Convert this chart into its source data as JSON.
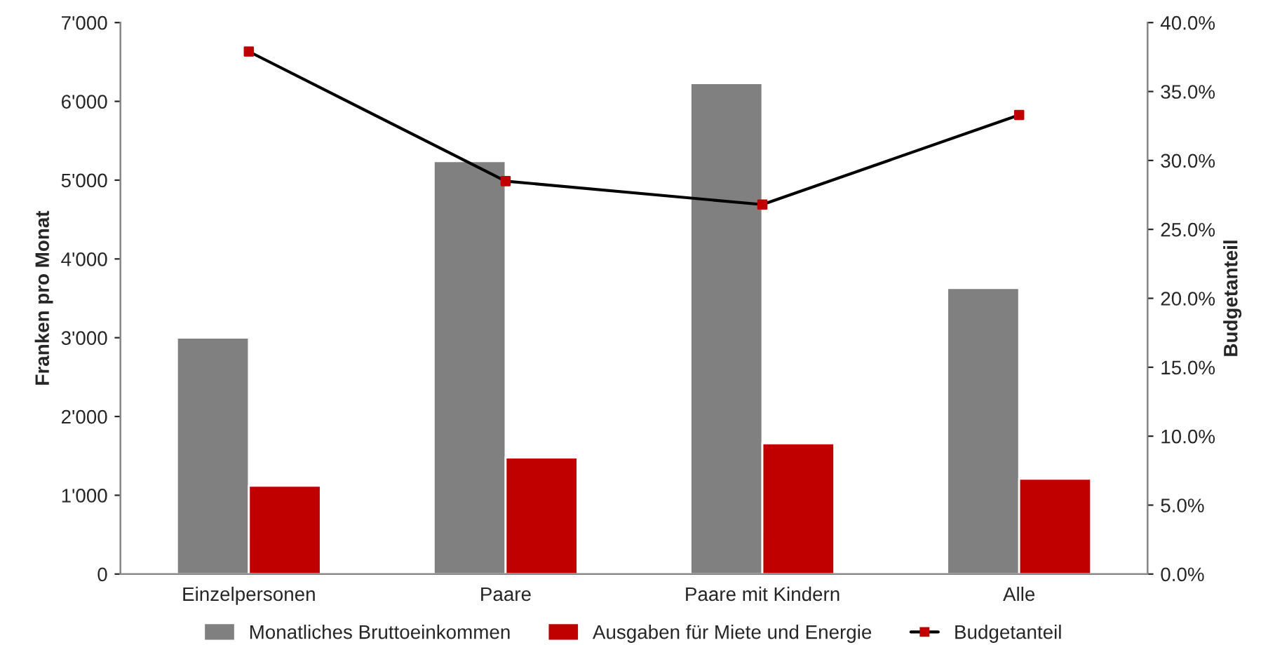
{
  "chart_data": {
    "type": "bar",
    "ylabel": "Franken pro Monat",
    "y2label": "Budgetanteil",
    "categories": [
      "Einzelpersonen",
      "Paare",
      "Paare mit Kindern",
      "Alle"
    ],
    "series": [
      {
        "name": "Monatliches Bruttoeinkommen",
        "color": "#808080",
        "values": [
          3000,
          5240,
          6230,
          3630
        ]
      },
      {
        "name": "Ausgaben für Miete und Energie",
        "color": "#c00000",
        "values": [
          1120,
          1480,
          1660,
          1210
        ]
      },
      {
        "name": "Budgetanteil",
        "type": "line",
        "axis": "y2",
        "color": "#000000",
        "colors": [
          "#c00000",
          "#c00000",
          "#c00000",
          "#c00000"
        ],
        "marker": "square",
        "values": [
          37.9,
          28.5,
          26.8,
          33.3
        ]
      }
    ],
    "ylim": [
      0,
      7000
    ],
    "yticks": [
      0,
      {
        "value": 1000,
        "label": "1'000"
      },
      {
        "value": 2000,
        "label": "2'000"
      },
      {
        "value": 3000,
        "label": "3'000"
      },
      {
        "value": 4000,
        "label": "4'000"
      },
      {
        "value": 5000,
        "label": "5'000"
      },
      {
        "value": 6000,
        "label": "6'000"
      },
      {
        "value": 7000,
        "label": "7'000"
      }
    ],
    "y2lim": [
      0,
      40
    ],
    "y2ticks": [
      {
        "value": 0,
        "label": "0.0%"
      },
      {
        "value": 5,
        "label": "5.0%"
      },
      {
        "value": 10,
        "label": "10.0%"
      },
      {
        "value": 15,
        "label": "15.0%"
      },
      {
        "value": 20,
        "label": "20.0%"
      },
      {
        "value": 25,
        "label": "25.0%"
      },
      {
        "value": 30,
        "label": "30.0%"
      },
      {
        "value": 35,
        "label": "35.0%"
      },
      {
        "value": 40,
        "label": "40.0%"
      }
    ],
    "grid": false,
    "legend": "bottom"
  }
}
